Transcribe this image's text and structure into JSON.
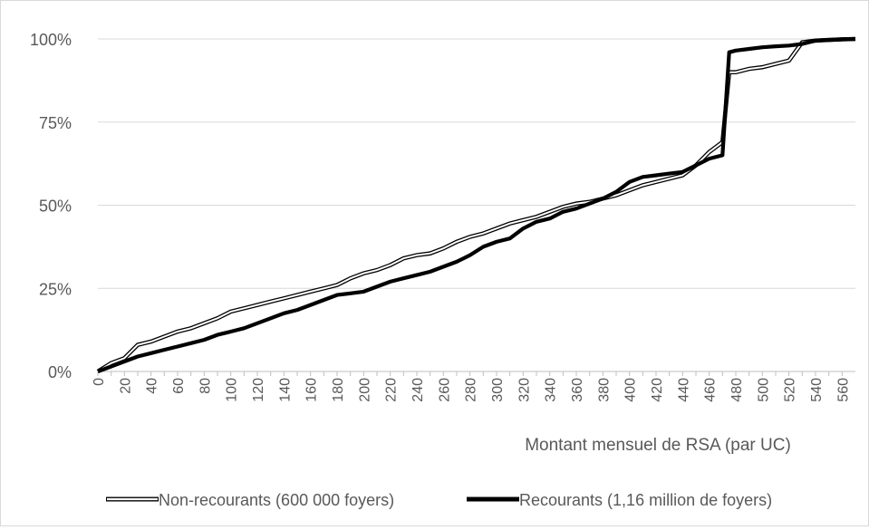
{
  "chart_data": {
    "type": "line",
    "title": "",
    "xlabel": "Montant mensuel de RSA (par UC)",
    "ylabel": "",
    "xlim": [
      0,
      570
    ],
    "ylim": [
      0,
      100
    ],
    "x_ticks": [
      0,
      10,
      20,
      30,
      40,
      50,
      60,
      70,
      80,
      90,
      100,
      110,
      120,
      130,
      140,
      150,
      160,
      170,
      180,
      190,
      200,
      210,
      220,
      230,
      240,
      250,
      260,
      270,
      280,
      290,
      300,
      310,
      320,
      330,
      340,
      350,
      360,
      370,
      380,
      390,
      400,
      410,
      420,
      430,
      440,
      450,
      460,
      470,
      480,
      490,
      500,
      510,
      520,
      530,
      540,
      550,
      560
    ],
    "x_tick_labels": [
      "0",
      "20",
      "40",
      "60",
      "80",
      "100",
      "120",
      "140",
      "160",
      "180",
      "200",
      "220",
      "240",
      "260",
      "280",
      "300",
      "320",
      "340",
      "360",
      "380",
      "400",
      "420",
      "440",
      "460",
      "480",
      "500",
      "520",
      "540",
      "560"
    ],
    "y_ticks": [
      "0%",
      "25%",
      "50%",
      "75%",
      "100%"
    ],
    "grid": "horizontal",
    "legend_position": "bottom",
    "series": [
      {
        "name": "Non-recourants (600 000 foyers)",
        "style": "outlined",
        "color": "#000000",
        "x": [
          0,
          10,
          20,
          30,
          40,
          50,
          60,
          70,
          80,
          90,
          100,
          110,
          120,
          130,
          140,
          150,
          160,
          170,
          180,
          190,
          200,
          210,
          220,
          230,
          240,
          250,
          260,
          270,
          280,
          290,
          300,
          310,
          320,
          330,
          340,
          350,
          360,
          370,
          380,
          390,
          400,
          410,
          420,
          430,
          440,
          450,
          460,
          470,
          475,
          480,
          490,
          500,
          510,
          520,
          530,
          540,
          550,
          560,
          570
        ],
        "y": [
          0,
          2.5,
          4,
          8,
          9,
          10.5,
          12,
          13,
          14.5,
          16,
          18,
          19,
          20,
          21,
          22,
          23,
          24,
          25,
          26,
          28,
          29.5,
          30.5,
          32,
          34,
          35,
          35.5,
          37,
          39,
          40.5,
          41.5,
          43,
          44.5,
          45.5,
          46.5,
          48,
          49.5,
          50.5,
          51,
          52,
          53,
          54.5,
          56,
          57,
          58,
          59,
          62,
          66,
          69,
          90,
          90,
          91,
          91.5,
          92.5,
          93.5,
          99,
          99.5,
          99.7,
          99.9,
          100
        ]
      },
      {
        "name": "Recourants (1,16 million de foyers)",
        "style": "solid-thick",
        "color": "#000000",
        "x": [
          0,
          10,
          20,
          30,
          40,
          50,
          60,
          70,
          80,
          90,
          100,
          110,
          120,
          130,
          140,
          150,
          160,
          170,
          180,
          190,
          200,
          210,
          220,
          230,
          240,
          250,
          260,
          270,
          280,
          290,
          300,
          310,
          320,
          330,
          340,
          350,
          360,
          370,
          380,
          390,
          400,
          410,
          420,
          430,
          440,
          450,
          460,
          470,
          475,
          480,
          490,
          500,
          510,
          520,
          530,
          540,
          550,
          560,
          570
        ],
        "y": [
          0,
          1.5,
          3,
          4.5,
          5.5,
          6.5,
          7.5,
          8.5,
          9.5,
          11,
          12,
          13,
          14.5,
          16,
          17.5,
          18.5,
          20,
          21.5,
          23,
          23.5,
          24,
          25.5,
          27,
          28,
          29,
          30,
          31.5,
          33,
          35,
          37.5,
          39,
          40,
          43,
          45,
          46,
          48,
          49,
          50.5,
          52,
          54,
          57,
          58.5,
          59,
          59.5,
          60,
          62,
          64,
          65,
          96,
          96.5,
          97,
          97.5,
          97.8,
          98,
          98.5,
          99.5,
          99.7,
          99.9,
          100
        ]
      }
    ]
  }
}
